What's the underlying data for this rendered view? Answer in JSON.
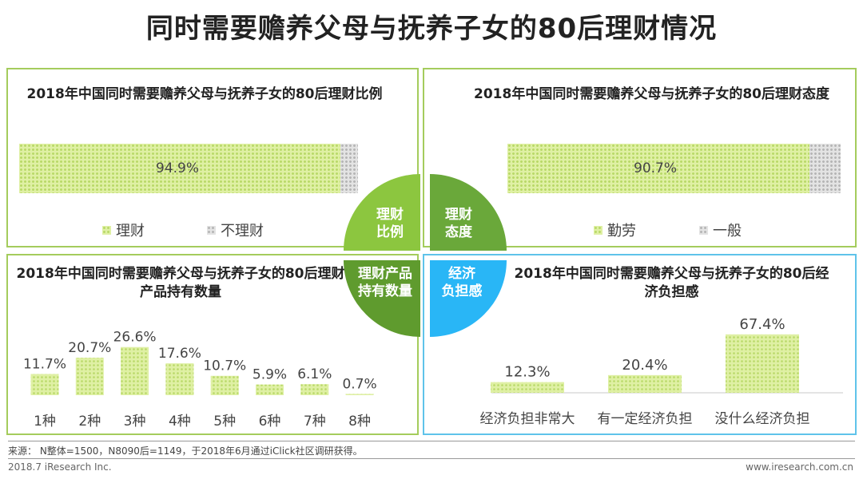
{
  "title": "同时需要赡养父母与抚养子女的80后理财情况",
  "panels": {
    "top_left": {
      "title": "2018年中国同时需要赡养父母与抚养子女的80后理财比例"
    },
    "top_right": {
      "title": "2018年中国同时需要赡养父母与抚养子女的80后理财态度"
    },
    "bottom_left": {
      "title": "2018年中国同时需要赡养父母与抚养子女的80后理财产品持有数量"
    },
    "bottom_right": {
      "title": "2018年中国同时需要赡养父母与抚养子女的80后经济负担感"
    }
  },
  "center": {
    "q1": [
      "理财",
      "比例"
    ],
    "q2": [
      "理财",
      "态度"
    ],
    "q3": [
      "理财产品",
      "持有数量"
    ],
    "q4": [
      "经济",
      "负担感"
    ]
  },
  "colors": {
    "green_border": "#a4cc5c",
    "blue_border": "#5fc3ea",
    "q_green_dark": "#6aa83a",
    "q_green": "#8cc63f",
    "q_lime": "#a7cd45",
    "q_blue": "#29b6f6"
  },
  "chart_data": [
    {
      "type": "bar",
      "orientation": "stacked-horizontal",
      "title": "2018年中国同时需要赡养父母与抚养子女的80后理财比例",
      "categories": [
        "理财",
        "不理财"
      ],
      "values": [
        94.9,
        5.1
      ],
      "value_labels": [
        "94.9%"
      ],
      "legend": [
        "理财",
        "不理财"
      ]
    },
    {
      "type": "bar",
      "orientation": "stacked-horizontal",
      "title": "2018年中国同时需要赡养父母与抚养子女的80后理财态度",
      "categories": [
        "勤劳",
        "一般"
      ],
      "values": [
        90.7,
        9.3
      ],
      "value_labels": [
        "90.7%"
      ],
      "legend": [
        "勤劳",
        "一般"
      ]
    },
    {
      "type": "bar",
      "title": "2018年中国同时需要赡养父母与抚养子女的80后理财产品持有数量",
      "categories": [
        "1种",
        "2种",
        "3种",
        "4种",
        "5种",
        "6种",
        "7种",
        "8种"
      ],
      "values": [
        11.7,
        20.7,
        26.6,
        17.6,
        10.7,
        5.9,
        6.1,
        0.7
      ],
      "value_labels": [
        "11.7%",
        "20.7%",
        "26.6%",
        "17.6%",
        "10.7%",
        "5.9%",
        "6.1%",
        "0.7%"
      ],
      "ylim": [
        0,
        30
      ]
    },
    {
      "type": "bar",
      "title": "2018年中国同时需要赡养父母与抚养子女的80后经济负担感",
      "categories": [
        "经济负担非常大",
        "有一定经济负担",
        "没什么经济负担"
      ],
      "values": [
        12.3,
        20.4,
        67.4
      ],
      "value_labels": [
        "12.3%",
        "20.4%",
        "67.4%"
      ],
      "ylim": [
        0,
        70
      ]
    }
  ],
  "source": "来源： N整体=1500，N8090后=1149，于2018年6月通过iClick社区调研获得。",
  "footer_left": "2018.7 iResearch Inc.",
  "footer_right": "www.iresearch.com.cn"
}
